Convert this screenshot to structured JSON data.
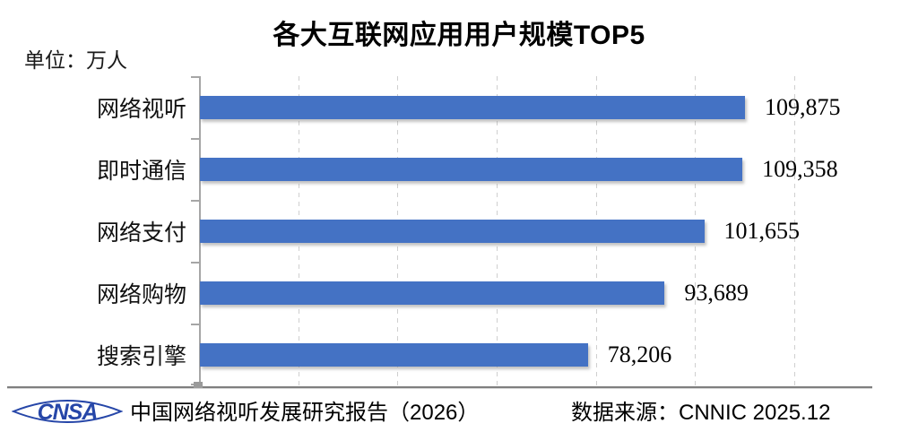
{
  "title": "各大互联网应用用户规模TOP5",
  "unit_label": "单位：万人",
  "chart_data": {
    "type": "bar",
    "orientation": "horizontal",
    "title": "各大互联网应用用户规模TOP5",
    "unit": "万人",
    "categories": [
      "网络视听",
      "即时通信",
      "网络支付",
      "网络购物",
      "搜索引擎"
    ],
    "values": [
      109875,
      109358,
      101655,
      93689,
      78206
    ],
    "value_labels": [
      "109,875",
      "109,358",
      "101,655",
      "93,689",
      "78,206"
    ],
    "xlim": [
      0,
      120000
    ],
    "grid_interval": 20000,
    "grid": "vertical-dashed",
    "legend": "none",
    "bar_color": "#4472C4",
    "gridline_color": "#cfcfcf",
    "axis_color": "#a6a6a6"
  },
  "footer": {
    "logo_text": "CNSA",
    "logo_color": "#2646a8",
    "left_text": "中国网络视听发展研究报告（2026）",
    "right_text": "数据来源：CNNIC 2025.12"
  }
}
